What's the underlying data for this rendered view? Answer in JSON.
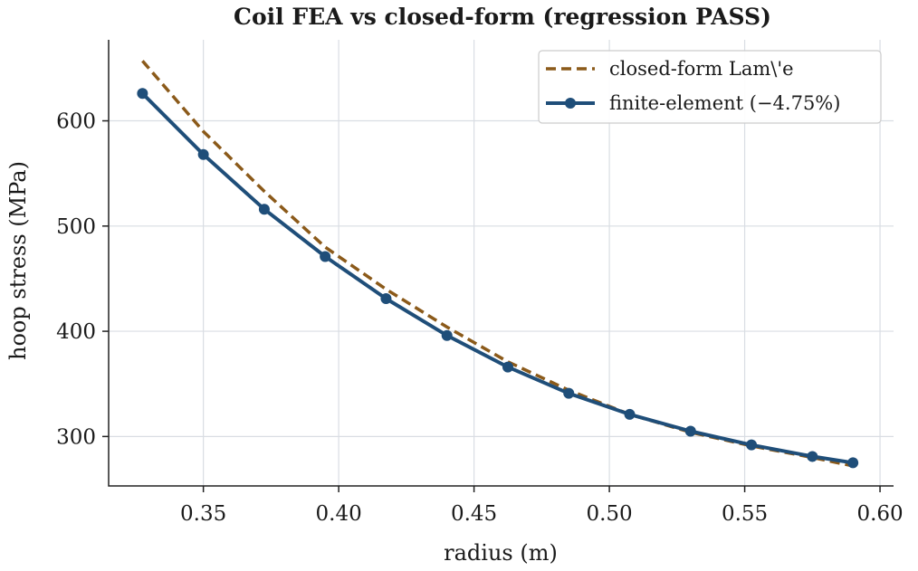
{
  "chart_data": {
    "type": "line",
    "title": "Coil FEA vs closed-form (regression PASS)",
    "xlabel": "radius (m)",
    "ylabel": "hoop stress (MPa)",
    "xlim": [
      0.315,
      0.605
    ],
    "ylim": [
      253,
      677
    ],
    "xticks": [
      0.35,
      0.4,
      0.45,
      0.5,
      0.55,
      0.6
    ],
    "xtick_labels": [
      "0.35",
      "0.40",
      "0.45",
      "0.50",
      "0.55",
      "0.60"
    ],
    "yticks": [
      300,
      400,
      500,
      600
    ],
    "ytick_labels": [
      "300",
      "400",
      "500",
      "600"
    ],
    "grid": true,
    "legend_position": "top-right",
    "series": [
      {
        "name": "closed-form Lam\\'e",
        "style": "dashed",
        "color": "#8B5A1A",
        "x": [
          0.3275,
          0.35,
          0.3725,
          0.395,
          0.4175,
          0.44,
          0.4625,
          0.485,
          0.5075,
          0.53,
          0.5525,
          0.575,
          0.59
        ],
        "values": [
          657,
          590,
          533,
          480,
          440,
          404,
          371,
          344,
          321,
          304,
          291,
          280,
          272
        ]
      },
      {
        "name": "finite-element (−4.75%)",
        "style": "solid-markers",
        "color": "#1F4E79",
        "x": [
          0.3275,
          0.35,
          0.3725,
          0.395,
          0.4175,
          0.44,
          0.4625,
          0.485,
          0.5075,
          0.53,
          0.5525,
          0.575,
          0.59
        ],
        "values": [
          626,
          568,
          516,
          471,
          431,
          396,
          366,
          341,
          321,
          305,
          292,
          281,
          275
        ]
      }
    ]
  }
}
